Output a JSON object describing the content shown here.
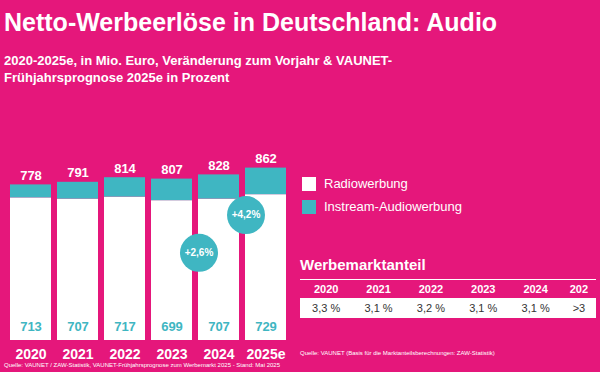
{
  "chart_data": {
    "type": "bar",
    "title": "Netto-Werbeerlöse in Deutschland: Audio",
    "subtitle": "2020-2025e, in Mio. Euro, Veränderung zum Vorjahr & VAUNET-Frühjahrsprognose 2025e in Prozent",
    "categories": [
      "2020",
      "2021",
      "2022",
      "2023",
      "2024",
      "2025e"
    ],
    "series": [
      {
        "name": "Radiowerbung",
        "color": "#ffffff",
        "values": [
          713,
          707,
          717,
          699,
          707,
          729
        ],
        "data_labels": true
      },
      {
        "name": "Instream-Audiowerbung",
        "color": "#3fb6c2",
        "values": [
          65,
          84,
          97,
          108,
          121,
          133
        ],
        "data_labels": false
      }
    ],
    "totals": [
      778,
      791,
      814,
      807,
      828,
      862
    ],
    "annotations": [
      {
        "category": "2024",
        "text": "+2,6%"
      },
      {
        "category": "2025e",
        "text": "+4,2%"
      }
    ],
    "stacked": true,
    "ylim": [
      0,
      900
    ],
    "tick_labels": "x",
    "grid": false,
    "legend": "right",
    "source": "Quelle: VAUNET / ZAW-Statistik, VAUNET-Frühjahrsprognose zum Werbemarkt 2025 - Stand: Mai 2025"
  },
  "table": {
    "title": "Werbemarktanteil",
    "header": [
      "2020",
      "2021",
      "2022",
      "2023",
      "2024",
      "202"
    ],
    "rows": [
      [
        "3,3 %",
        "3,1 %",
        "3,2 %",
        "3,1 %",
        "3,1 %",
        ">3"
      ]
    ],
    "source": "Quelle: VAUNET (Basis für die Marktanteilsberechnungen: ZAW-Statistik)"
  }
}
